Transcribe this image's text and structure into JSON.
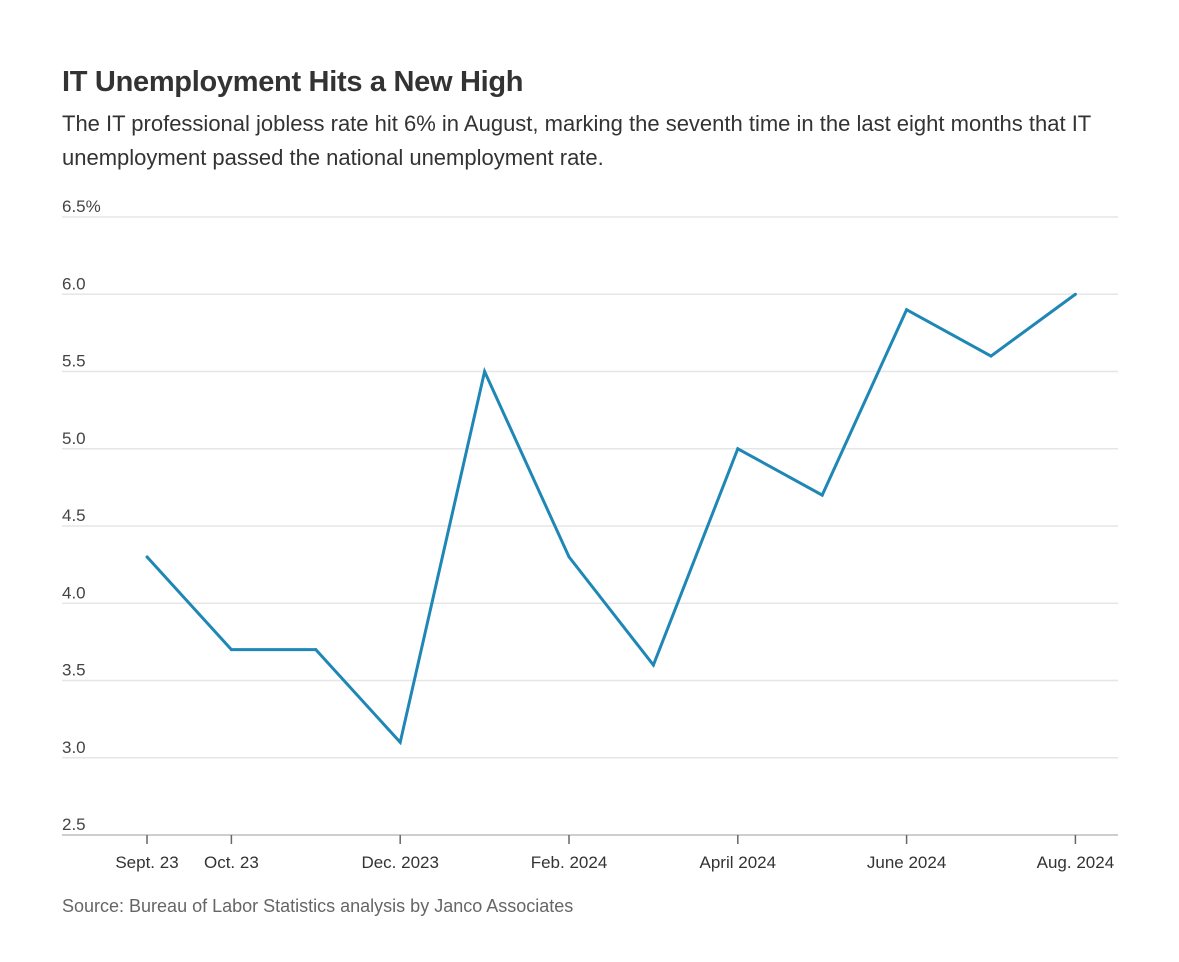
{
  "chart_data": {
    "type": "line",
    "title": "IT Unemployment Hits a New High",
    "subtitle": "The IT professional jobless rate hit 6% in August, marking the seventh time in the last eight months that IT unemployment passed the national unemployment rate.",
    "source": "Source: Bureau of Labor Statistics analysis by Janco Associates",
    "xlabel": "",
    "ylabel": "",
    "ylim": [
      2.5,
      6.5
    ],
    "yticks": [
      {
        "value": 2.5,
        "label": "2.5"
      },
      {
        "value": 3.0,
        "label": "3.0"
      },
      {
        "value": 3.5,
        "label": "3.5"
      },
      {
        "value": 4.0,
        "label": "4.0"
      },
      {
        "value": 4.5,
        "label": "4.5"
      },
      {
        "value": 5.0,
        "label": "5.0"
      },
      {
        "value": 5.5,
        "label": "5.5"
      },
      {
        "value": 6.0,
        "label": "6.0"
      },
      {
        "value": 6.5,
        "label": "6.5%"
      }
    ],
    "x": [
      "2023-09",
      "2023-10",
      "2023-11",
      "2023-12",
      "2024-01",
      "2024-02",
      "2024-03",
      "2024-04",
      "2024-05",
      "2024-06",
      "2024-07",
      "2024-08"
    ],
    "xticks": [
      {
        "x": "2023-09",
        "label": "Sept. 23"
      },
      {
        "x": "2023-10",
        "label": "Oct. 23"
      },
      {
        "x": "2023-12",
        "label": "Dec. 2023"
      },
      {
        "x": "2024-02",
        "label": "Feb. 2024"
      },
      {
        "x": "2024-04",
        "label": "April 2024"
      },
      {
        "x": "2024-06",
        "label": "June 2024"
      },
      {
        "x": "2024-08",
        "label": "Aug. 2024"
      }
    ],
    "series": [
      {
        "values": [
          4.3,
          3.7,
          3.7,
          3.1,
          5.5,
          4.3,
          3.6,
          5.0,
          4.7,
          5.9,
          5.6,
          6.0
        ],
        "color": "#1f87b5"
      }
    ],
    "grid": true
  }
}
